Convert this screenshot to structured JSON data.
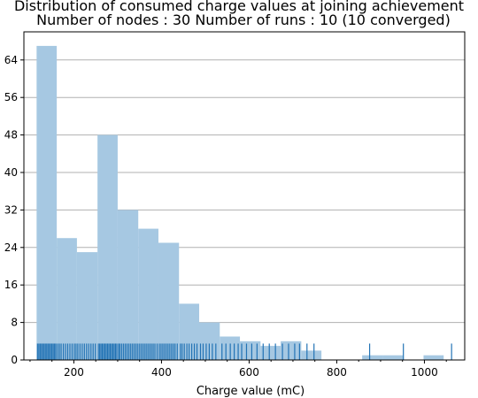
{
  "chart_data": {
    "type": "bar",
    "title": "Distribution of consumed charge values at joining achievement",
    "subtitle": "Number of nodes : 30   Number of runs : 10 (10 converged)",
    "xlabel": "Charge value (mC)",
    "ylabel": "",
    "xlim": [
      86,
      1092
    ],
    "ylim": [
      0,
      70
    ],
    "xticks": [
      200,
      400,
      600,
      800,
      1000
    ],
    "yticks": [
      0,
      8,
      16,
      24,
      32,
      40,
      48,
      56,
      64
    ],
    "grid": "y",
    "colors": {
      "bars": "#a6c8e2",
      "rug": "#2273b5",
      "grid": "#b0b0b0",
      "axes": "#000000"
    },
    "bins": [
      {
        "x0": 115,
        "x1": 161,
        "count": 67
      },
      {
        "x0": 161,
        "x1": 207,
        "count": 26
      },
      {
        "x0": 207,
        "x1": 254,
        "count": 23
      },
      {
        "x0": 254,
        "x1": 300,
        "count": 48
      },
      {
        "x0": 300,
        "x1": 347,
        "count": 32
      },
      {
        "x0": 347,
        "x1": 393,
        "count": 28
      },
      {
        "x0": 393,
        "x1": 440,
        "count": 25
      },
      {
        "x0": 440,
        "x1": 486,
        "count": 12
      },
      {
        "x0": 486,
        "x1": 533,
        "count": 8
      },
      {
        "x0": 533,
        "x1": 579,
        "count": 5
      },
      {
        "x0": 579,
        "x1": 626,
        "count": 4
      },
      {
        "x0": 626,
        "x1": 672,
        "count": 3
      },
      {
        "x0": 672,
        "x1": 719,
        "count": 4
      },
      {
        "x0": 719,
        "x1": 765,
        "count": 2
      },
      {
        "x0": 765,
        "x1": 812,
        "count": 0
      },
      {
        "x0": 812,
        "x1": 858,
        "count": 0
      },
      {
        "x0": 858,
        "x1": 905,
        "count": 1
      },
      {
        "x0": 905,
        "x1": 951,
        "count": 1
      },
      {
        "x0": 951,
        "x1": 998,
        "count": 0
      },
      {
        "x0": 998,
        "x1": 1044,
        "count": 1
      }
    ],
    "rug": [
      117,
      120,
      123,
      126,
      129,
      132,
      135,
      138,
      141,
      144,
      147,
      150,
      153,
      156,
      159,
      163,
      167,
      171,
      176,
      181,
      186,
      191,
      196,
      201,
      205,
      209,
      214,
      219,
      224,
      229,
      234,
      239,
      244,
      249,
      256,
      259,
      262,
      265,
      268,
      271,
      274,
      277,
      280,
      283,
      286,
      289,
      292,
      295,
      298,
      302,
      305,
      309,
      313,
      317,
      321,
      325,
      329,
      333,
      337,
      341,
      345,
      349,
      353,
      357,
      361,
      365,
      369,
      373,
      377,
      381,
      385,
      390,
      395,
      399,
      403,
      407,
      411,
      415,
      419,
      423,
      427,
      431,
      436,
      443,
      447,
      452,
      458,
      463,
      469,
      475,
      481,
      489,
      495,
      502,
      509,
      516,
      524,
      538,
      547,
      557,
      566,
      575,
      583,
      594,
      606,
      618,
      632,
      646,
      660,
      676,
      690,
      704,
      715,
      732,
      748,
      875,
      952,
      1062
    ]
  }
}
